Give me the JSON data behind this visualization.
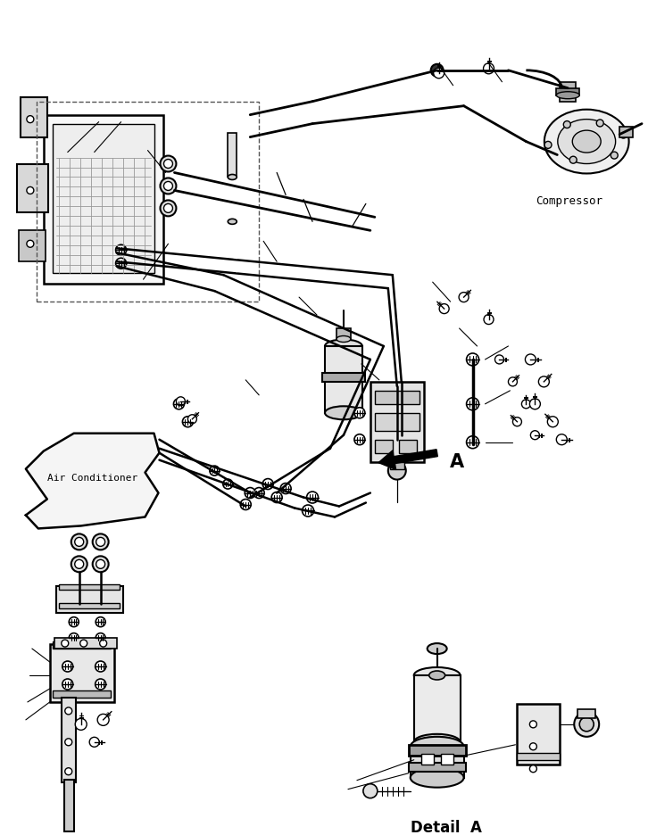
{
  "bg_color": "#ffffff",
  "line_color": "#000000",
  "compressor_label": "Compressor",
  "air_conditioner_label": "Air Conditioner",
  "detail_a_label": "Detail  A",
  "arrow_a_label": "A",
  "figsize": [
    7.26,
    9.37
  ],
  "dpi": 100
}
